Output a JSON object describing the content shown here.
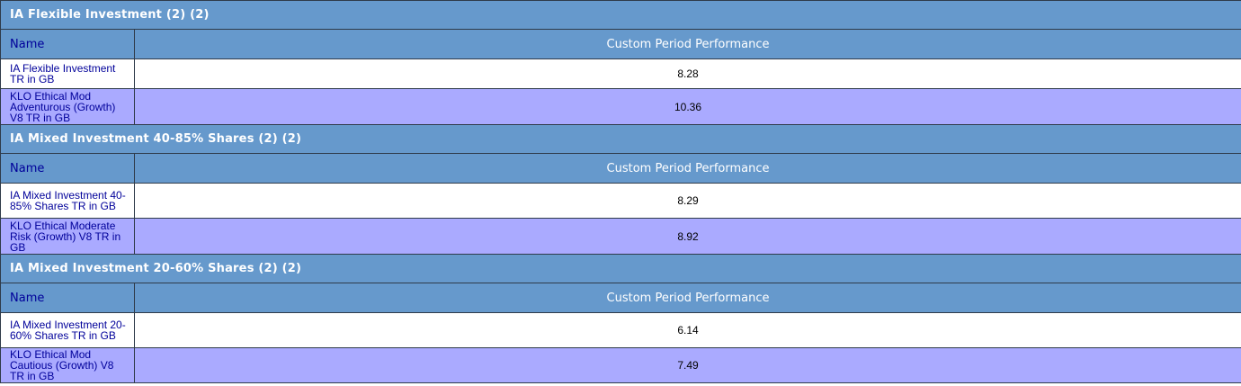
{
  "table": {
    "name_header": "Name",
    "perf_header": "Custom Period Performance",
    "groups": [
      {
        "title": "IA Flexible Investment (2) (2)",
        "rows": [
          {
            "name": "IA Flexible Investment TR in GB",
            "value": "8.28"
          },
          {
            "name": "KLO Ethical Mod Adventurous (Growth) V8 TR in GB",
            "value": "10.36"
          }
        ]
      },
      {
        "title": "IA Mixed Investment 40-85% Shares (2) (2)",
        "rows": [
          {
            "name": "IA Mixed Investment 40-85% Shares TR in GB",
            "value": "8.29"
          },
          {
            "name": "KLO Ethical Moderate Risk (Growth) V8 TR in GB",
            "value": "8.92"
          }
        ]
      },
      {
        "title": "IA Mixed Investment 20-60% Shares (2) (2)",
        "rows": [
          {
            "name": "IA Mixed Investment 20-60% Shares TR in GB",
            "value": "6.14"
          },
          {
            "name": "KLO Ethical Mod Cautious (Growth) V8 TR in GB",
            "value": "7.49"
          }
        ]
      }
    ]
  }
}
